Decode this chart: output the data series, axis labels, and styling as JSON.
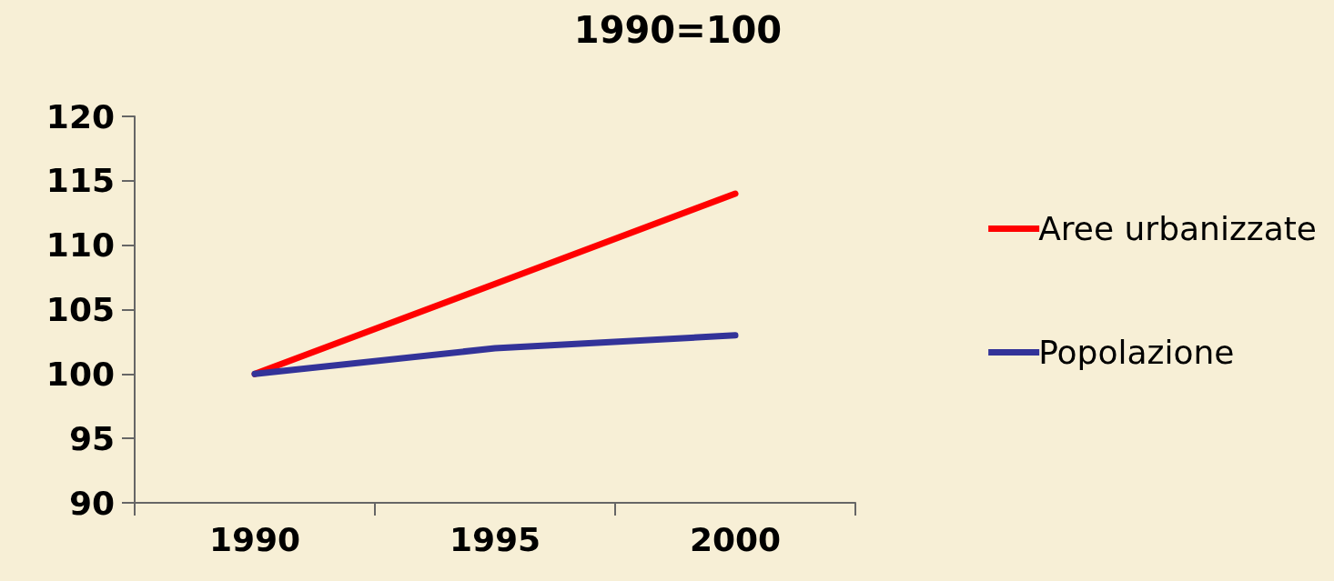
{
  "chart_data": {
    "type": "line",
    "title": "1990=100",
    "categories": [
      "1990",
      "1995",
      "2000"
    ],
    "series": [
      {
        "name": "Aree urbanizzate",
        "color": "#ff0000",
        "values": [
          100,
          107,
          114
        ]
      },
      {
        "name": "Popolazione",
        "color": "#333399",
        "values": [
          100,
          102,
          103
        ]
      }
    ],
    "ylim": [
      90,
      120
    ],
    "yticks": [
      90,
      95,
      100,
      105,
      110,
      115,
      120
    ],
    "grid": false,
    "legend": "right",
    "marker": "none",
    "line_style": "solid"
  }
}
